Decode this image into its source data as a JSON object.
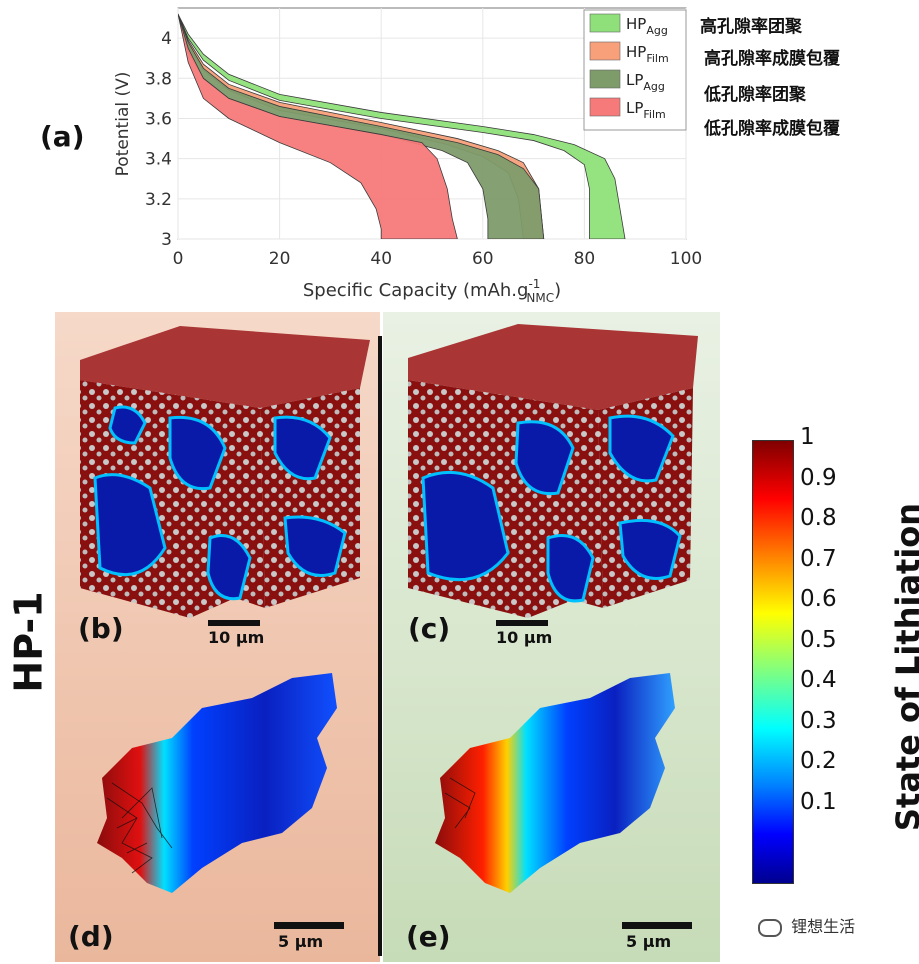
{
  "chart_data": {
    "type": "area",
    "panel_label": "(a)",
    "xlabel": "Specific Capacity (mAh.g",
    "xlabel_sup": "-1",
    "xlabel_sub": "NMC",
    "ylabel": "Potential (V)",
    "xlim": [
      0,
      100
    ],
    "ylim": [
      3,
      4.15
    ],
    "xticks": [
      0,
      20,
      40,
      60,
      80,
      100
    ],
    "yticks": [
      3,
      3.2,
      3.4,
      3.6,
      3.8,
      4
    ],
    "legend_position": "top-right",
    "series": [
      {
        "name": "HP",
        "sub": "Agg",
        "color": "#8fe07a",
        "upper": [
          [
            0,
            4.12
          ],
          [
            2,
            4.02
          ],
          [
            5,
            3.92
          ],
          [
            10,
            3.82
          ],
          [
            20,
            3.72
          ],
          [
            40,
            3.63
          ],
          [
            60,
            3.56
          ],
          [
            70,
            3.52
          ],
          [
            78,
            3.47
          ],
          [
            84,
            3.4
          ],
          [
            86,
            3.3
          ],
          [
            87,
            3.15
          ],
          [
            88,
            3.0
          ]
        ],
        "lower": [
          [
            0,
            4.12
          ],
          [
            2,
            4.0
          ],
          [
            5,
            3.89
          ],
          [
            10,
            3.79
          ],
          [
            20,
            3.69
          ],
          [
            40,
            3.6
          ],
          [
            60,
            3.53
          ],
          [
            70,
            3.49
          ],
          [
            76,
            3.44
          ],
          [
            80,
            3.37
          ],
          [
            81,
            3.25
          ],
          [
            81,
            3.0
          ]
        ]
      },
      {
        "name": "HP",
        "sub": "Film",
        "color": "#f7a07a",
        "upper": [
          [
            0,
            4.12
          ],
          [
            2,
            3.99
          ],
          [
            5,
            3.87
          ],
          [
            10,
            3.77
          ],
          [
            20,
            3.68
          ],
          [
            40,
            3.58
          ],
          [
            55,
            3.5
          ],
          [
            63,
            3.44
          ],
          [
            68,
            3.38
          ],
          [
            71,
            3.25
          ],
          [
            72,
            3.0
          ]
        ],
        "lower": [
          [
            0,
            4.12
          ],
          [
            2,
            3.96
          ],
          [
            5,
            3.84
          ],
          [
            10,
            3.74
          ],
          [
            20,
            3.64
          ],
          [
            40,
            3.55
          ],
          [
            53,
            3.47
          ],
          [
            60,
            3.41
          ],
          [
            65,
            3.33
          ],
          [
            67,
            3.2
          ],
          [
            68,
            3.0
          ]
        ]
      },
      {
        "name": "LP",
        "sub": "Agg",
        "color": "#7e9b6a",
        "upper": [
          [
            0,
            4.12
          ],
          [
            2,
            3.98
          ],
          [
            5,
            3.85
          ],
          [
            10,
            3.75
          ],
          [
            20,
            3.66
          ],
          [
            40,
            3.56
          ],
          [
            55,
            3.48
          ],
          [
            63,
            3.42
          ],
          [
            68,
            3.35
          ],
          [
            71,
            3.25
          ],
          [
            72,
            3.0
          ]
        ],
        "lower": [
          [
            0,
            4.12
          ],
          [
            2,
            3.93
          ],
          [
            5,
            3.8
          ],
          [
            10,
            3.7
          ],
          [
            20,
            3.61
          ],
          [
            40,
            3.52
          ],
          [
            52,
            3.44
          ],
          [
            57,
            3.38
          ],
          [
            60,
            3.25
          ],
          [
            61,
            3.1
          ],
          [
            61,
            3.0
          ]
        ]
      },
      {
        "name": "LP",
        "sub": "Film",
        "color": "#f77a7a",
        "upper": [
          [
            0,
            4.12
          ],
          [
            2,
            3.95
          ],
          [
            5,
            3.8
          ],
          [
            10,
            3.7
          ],
          [
            20,
            3.61
          ],
          [
            40,
            3.52
          ],
          [
            48,
            3.48
          ],
          [
            51,
            3.4
          ],
          [
            53,
            3.25
          ],
          [
            54,
            3.1
          ],
          [
            55,
            3.0
          ]
        ],
        "lower": [
          [
            0,
            4.12
          ],
          [
            2,
            3.88
          ],
          [
            5,
            3.7
          ],
          [
            10,
            3.6
          ],
          [
            20,
            3.48
          ],
          [
            30,
            3.38
          ],
          [
            36,
            3.28
          ],
          [
            39,
            3.15
          ],
          [
            40,
            3.05
          ],
          [
            40,
            3.0
          ]
        ]
      }
    ]
  },
  "annotations_cn": [
    "高孔隙率团聚",
    "高孔隙率成膜包覆",
    "低孔隙率团聚",
    "低孔隙率成膜包覆"
  ],
  "panels": {
    "b": {
      "label": "(b)",
      "scale": "10 μm"
    },
    "c": {
      "label": "(c)",
      "scale": "10 μm"
    },
    "d": {
      "label": "(d)",
      "scale": "5 μm"
    },
    "e": {
      "label": "(e)",
      "scale": "5 μm"
    }
  },
  "side_label": "HP-1",
  "colorbar": {
    "title": "State of Lithiation",
    "ticks": [
      "1",
      "0.9",
      "0.8",
      "0.7",
      "0.6",
      "0.5",
      "0.4",
      "0.3",
      "0.2",
      "0.1"
    ]
  },
  "watermark": "锂想生活"
}
